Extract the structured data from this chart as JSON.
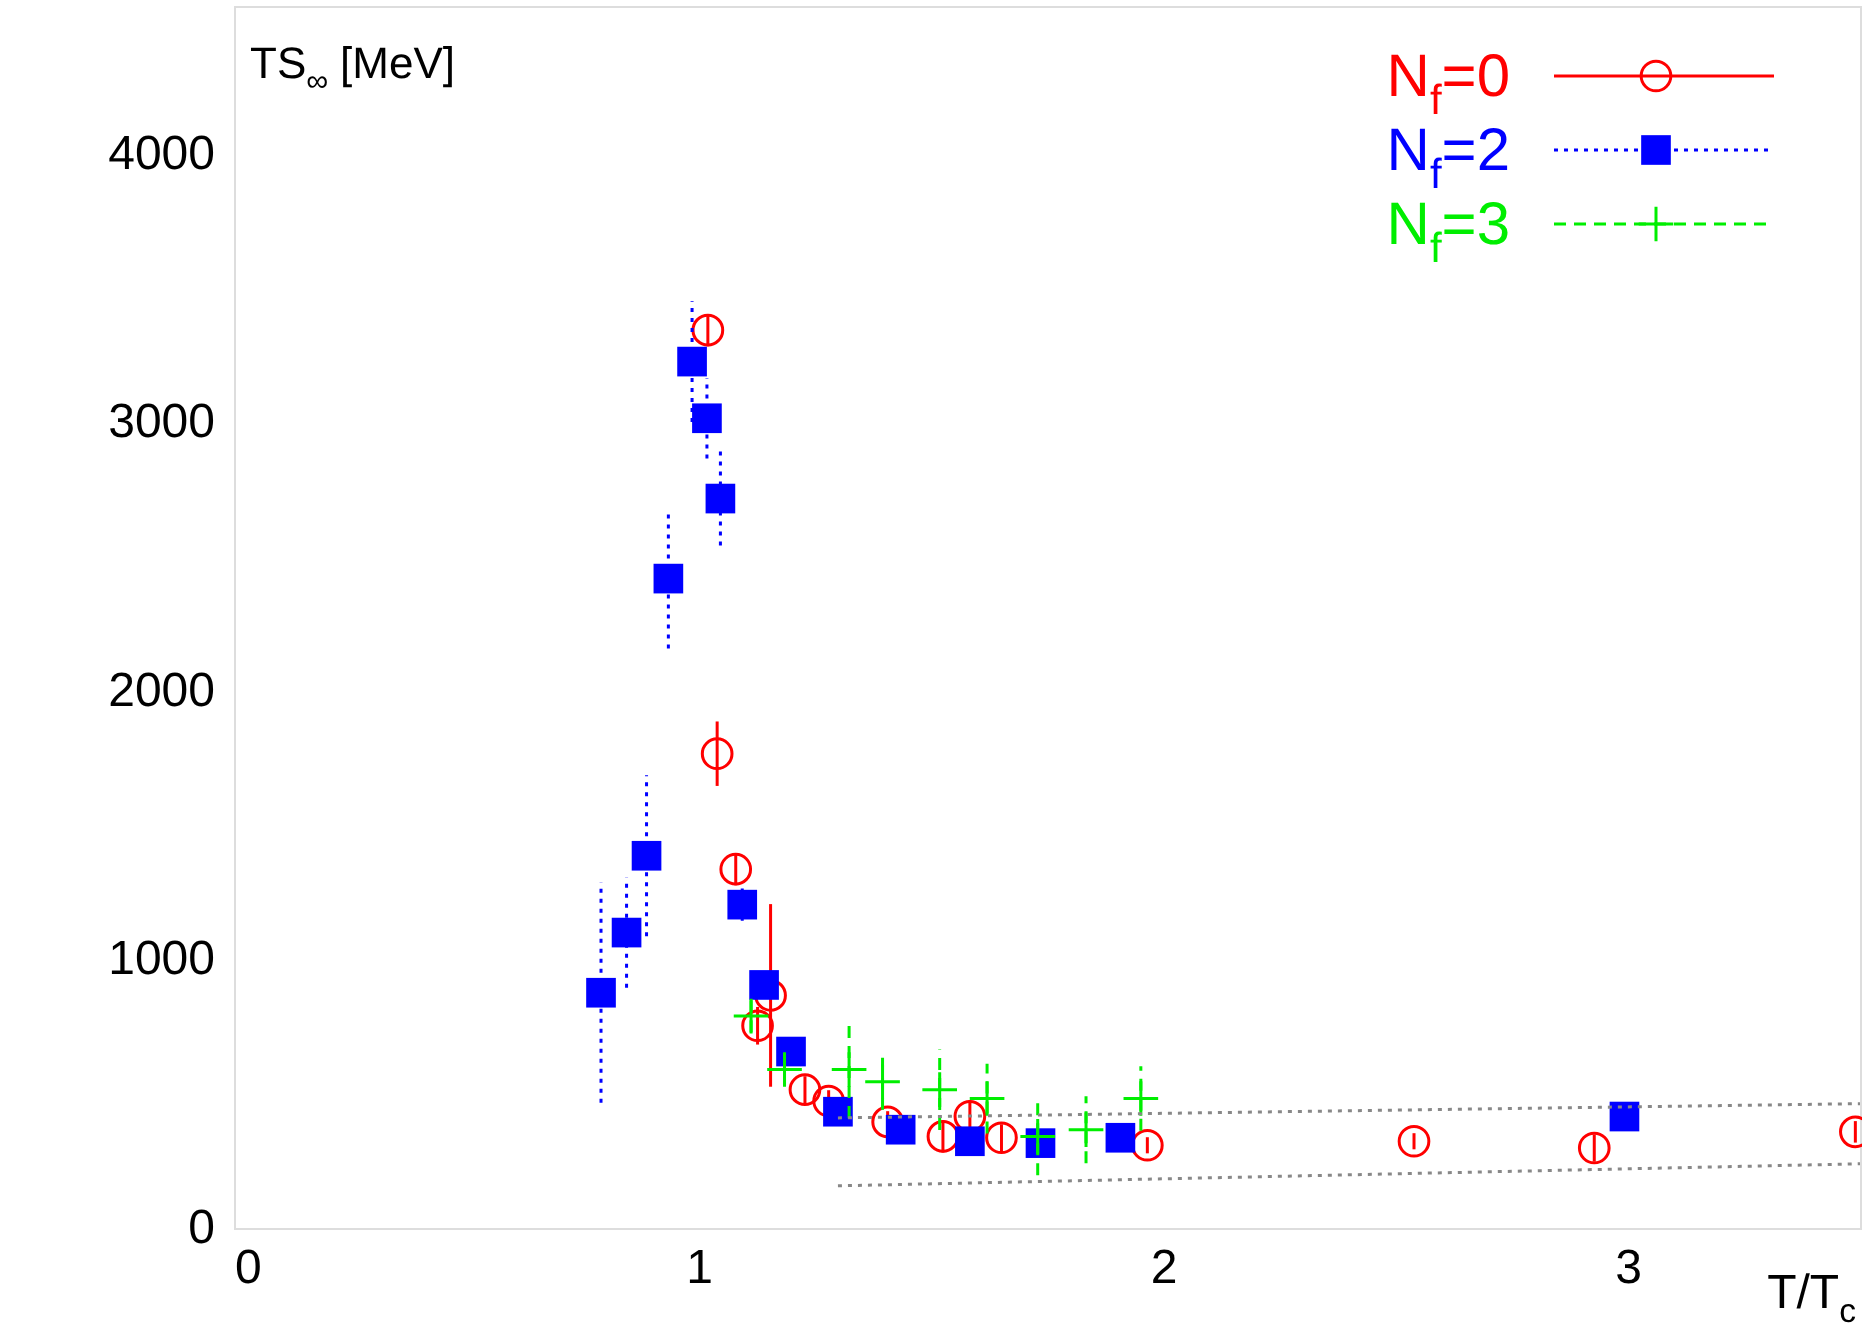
{
  "chart_data": {
    "type": "scatter",
    "ylabel": "TS$_{∞}$ [MeV]",
    "xlabel": "T/T$_{c}$",
    "xlim": [
      0,
      3.5
    ],
    "xticks": [
      0,
      1,
      2,
      3
    ],
    "ylim": [
      0,
      4550
    ],
    "yticks": [
      0,
      1000,
      2000,
      3000,
      4000
    ],
    "grid": false,
    "legend": "top right",
    "series": [
      {
        "name": "N$_{f}$=0",
        "color": "#ff0000",
        "marker": "circle",
        "line_style": "solid",
        "x": [
          1.02,
          1.04,
          1.08,
          1.127,
          1.155,
          1.229,
          1.28,
          1.407,
          1.526,
          1.584,
          1.652,
          1.966,
          2.54,
          2.928,
          3.49
        ],
        "values": [
          3343,
          1766,
          1336,
          753,
          866,
          515,
          473,
          395,
          341,
          416,
          336,
          308,
          323,
          298,
          358
        ],
        "errors": [
          60,
          120,
          60,
          70,
          340,
          50,
          40,
          40,
          60,
          60,
          50,
          30,
          30,
          50,
          40
        ]
      },
      {
        "name": "N$_{f}$=2",
        "color": "#0000ff",
        "marker": "square",
        "line_style": "dotted",
        "x": [
          0.79,
          0.845,
          0.888,
          0.935,
          0.986,
          1.018,
          1.047,
          1.094,
          1.141,
          1.199,
          1.3,
          1.435,
          1.584,
          1.736,
          1.908,
          2.993
        ],
        "values": [
          876,
          1100,
          1386,
          2418,
          3226,
          3015,
          2716,
          1204,
          905,
          657,
          433,
          366,
          323,
          316,
          336,
          415
        ],
        "errors": [
          410,
          205,
          300,
          260,
          225,
          150,
          175,
          60,
          50,
          40,
          30,
          30,
          30,
          30,
          30,
          30
        ]
      },
      {
        "name": "N$_{f}$=3",
        "color": "#00ee00",
        "marker": "cross",
        "line_style": "dashed",
        "x": [
          1.113,
          1.185,
          1.324,
          1.396,
          1.519,
          1.621,
          1.73,
          1.834,
          1.952
        ],
        "values": [
          789,
          590,
          590,
          545,
          515,
          482,
          341,
          366,
          482
        ],
        "errors": [
          60,
          60,
          180,
          105,
          150,
          130,
          145,
          125,
          120
        ]
      },
      {
        "type": "line",
        "color": "#888888",
        "line_style": "dotted",
        "marker": "none",
        "x": [
          1.3,
          3.5
        ],
        "values": [
          410,
          463
        ]
      },
      {
        "type": "line",
        "color": "#888888",
        "line_style": "dotted",
        "marker": "none",
        "x": [
          1.3,
          3.5
        ],
        "values": [
          157,
          239
        ]
      }
    ]
  }
}
